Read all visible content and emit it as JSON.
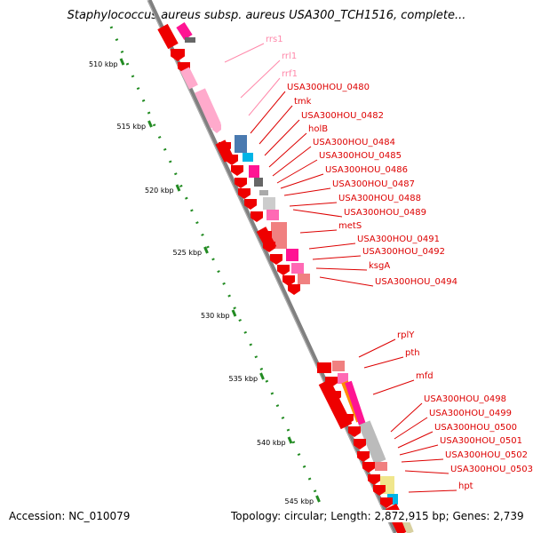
{
  "title": "Staphylococcus aureus subsp. aureus USA300_TCH1516, complete...",
  "footer": {
    "accession": "Accession: NC_010079",
    "summary": "Topology: circular; Length: 2,872,915 bp; Genes: 2,739"
  },
  "colors": {
    "backbone": "#808080",
    "grid": "#228b22",
    "label_red": "#dd0000",
    "label_pink": "#ff88aa",
    "gene_red": "#ee0000",
    "gene_pink": "#ffaacc"
  },
  "kbp_ticks": [
    "510 kbp",
    "515 kbp",
    "520 kbp",
    "525 kbp",
    "530 kbp",
    "535 kbp",
    "540 kbp",
    "545 kbp"
  ],
  "gene_labels": [
    {
      "text": "rrs1",
      "color": "pink"
    },
    {
      "text": "rrl1",
      "color": "pink"
    },
    {
      "text": "rrf1",
      "color": "pink"
    },
    {
      "text": "USA300HOU_0480",
      "color": "red"
    },
    {
      "text": "tmk",
      "color": "red"
    },
    {
      "text": "USA300HOU_0482",
      "color": "red"
    },
    {
      "text": "holB",
      "color": "red"
    },
    {
      "text": "USA300HOU_0484",
      "color": "red"
    },
    {
      "text": "USA300HOU_0485",
      "color": "red"
    },
    {
      "text": "USA300HOU_0486",
      "color": "red"
    },
    {
      "text": "USA300HOU_0487",
      "color": "red"
    },
    {
      "text": "USA300HOU_0488",
      "color": "red"
    },
    {
      "text": "USA300HOU_0489",
      "color": "red"
    },
    {
      "text": "metS",
      "color": "red"
    },
    {
      "text": "USA300HOU_0491",
      "color": "red"
    },
    {
      "text": "USA300HOU_0492",
      "color": "red"
    },
    {
      "text": "ksgA",
      "color": "red"
    },
    {
      "text": "USA300HOU_0494",
      "color": "red"
    },
    {
      "text": "rplY",
      "color": "red"
    },
    {
      "text": "pth",
      "color": "red"
    },
    {
      "text": "mfd",
      "color": "red"
    },
    {
      "text": "USA300HOU_0498",
      "color": "red"
    },
    {
      "text": "USA300HOU_0499",
      "color": "red"
    },
    {
      "text": "USA300HOU_0500",
      "color": "red"
    },
    {
      "text": "USA300HOU_0501",
      "color": "red"
    },
    {
      "text": "USA300HOU_0502",
      "color": "red"
    },
    {
      "text": "USA300HOU_0503",
      "color": "red"
    },
    {
      "text": "hpt",
      "color": "red"
    }
  ]
}
